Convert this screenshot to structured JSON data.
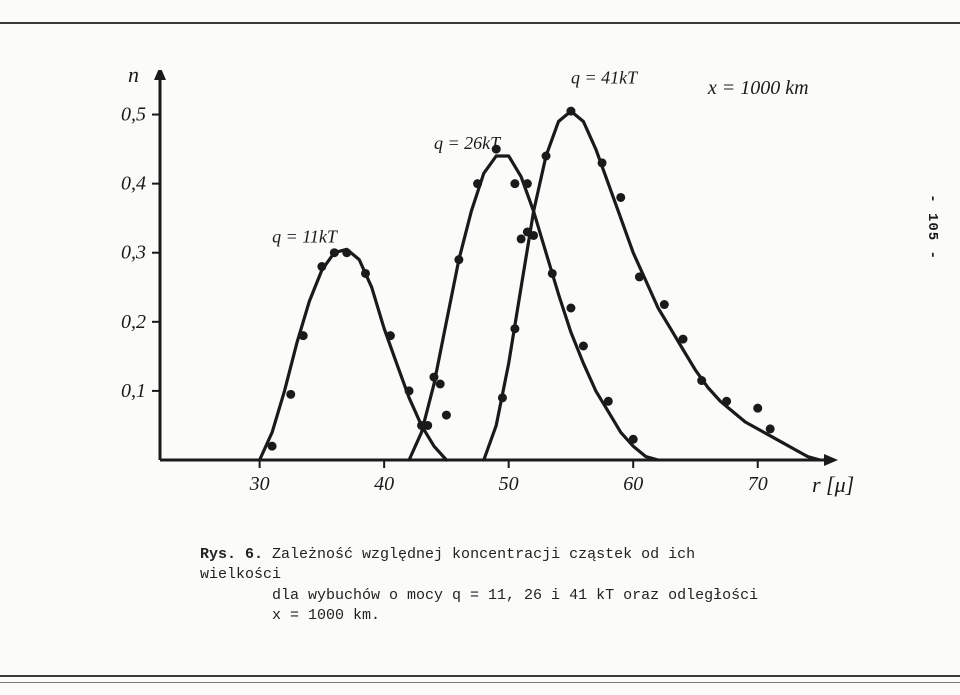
{
  "chart": {
    "type": "line",
    "title": null,
    "y_axis_label": "n",
    "x_axis_label": "r [μ]",
    "annotation_top_right": "x = 1000 km",
    "xlim": [
      22,
      75
    ],
    "ylim": [
      0,
      0.55
    ],
    "x_ticks": [
      30,
      40,
      50,
      60,
      70
    ],
    "y_ticks": [
      0.1,
      0.2,
      0.3,
      0.4,
      0.5
    ],
    "y_tick_labels": [
      "0,1",
      "0,2",
      "0,3",
      "0,4",
      "0,5"
    ],
    "axis_color": "#1a1a1a",
    "axis_width": 3,
    "background_color": "#fbfbf9",
    "tick_fontsize": 20,
    "label_fontsize": 22,
    "ann_fontsize": 20,
    "series": [
      {
        "label": "q = 11kT",
        "label_pos": [
          31,
          0.315
        ],
        "color": "#1a1a1a",
        "line_width": 3.2,
        "marker_size": 4.5,
        "curve": [
          [
            30,
            0.0
          ],
          [
            31,
            0.04
          ],
          [
            32,
            0.1
          ],
          [
            33,
            0.17
          ],
          [
            34,
            0.23
          ],
          [
            35,
            0.275
          ],
          [
            36,
            0.3
          ],
          [
            37,
            0.305
          ],
          [
            38,
            0.29
          ],
          [
            39,
            0.25
          ],
          [
            40,
            0.19
          ],
          [
            41,
            0.14
          ],
          [
            42,
            0.09
          ],
          [
            43,
            0.05
          ],
          [
            44,
            0.02
          ],
          [
            45,
            0.0
          ]
        ],
        "points": [
          [
            31,
            0.02
          ],
          [
            32.5,
            0.095
          ],
          [
            33.5,
            0.18
          ],
          [
            35,
            0.28
          ],
          [
            36,
            0.3
          ],
          [
            37,
            0.3
          ],
          [
            38.5,
            0.27
          ],
          [
            40.5,
            0.18
          ],
          [
            42,
            0.1
          ],
          [
            43.5,
            0.05
          ],
          [
            45,
            0.065
          ]
        ]
      },
      {
        "label": "q = 26kT",
        "label_pos": [
          44,
          0.45
        ],
        "color": "#1a1a1a",
        "line_width": 3.2,
        "marker_size": 4.5,
        "curve": [
          [
            42,
            0.0
          ],
          [
            43,
            0.04
          ],
          [
            44,
            0.11
          ],
          [
            45,
            0.2
          ],
          [
            46,
            0.29
          ],
          [
            47,
            0.36
          ],
          [
            48,
            0.415
          ],
          [
            49,
            0.44
          ],
          [
            50,
            0.44
          ],
          [
            51,
            0.41
          ],
          [
            52,
            0.36
          ],
          [
            53,
            0.3
          ],
          [
            54,
            0.24
          ],
          [
            55,
            0.185
          ],
          [
            56,
            0.14
          ],
          [
            57,
            0.1
          ],
          [
            58,
            0.07
          ],
          [
            59,
            0.04
          ],
          [
            60,
            0.02
          ],
          [
            61,
            0.005
          ],
          [
            62,
            0.0
          ]
        ],
        "points": [
          [
            43,
            0.05
          ],
          [
            44,
            0.12
          ],
          [
            44.5,
            0.11
          ],
          [
            46,
            0.29
          ],
          [
            47.5,
            0.4
          ],
          [
            49,
            0.45
          ],
          [
            50.5,
            0.4
          ],
          [
            51.5,
            0.4
          ],
          [
            52,
            0.325
          ],
          [
            53.5,
            0.27
          ],
          [
            55,
            0.22
          ],
          [
            56,
            0.165
          ],
          [
            58,
            0.085
          ],
          [
            60,
            0.03
          ]
        ]
      },
      {
        "label": "q = 41kT",
        "label_pos": [
          55,
          0.545
        ],
        "color": "#1a1a1a",
        "line_width": 3.2,
        "marker_size": 4.5,
        "curve": [
          [
            48,
            0.0
          ],
          [
            49,
            0.05
          ],
          [
            50,
            0.14
          ],
          [
            51,
            0.25
          ],
          [
            52,
            0.36
          ],
          [
            53,
            0.44
          ],
          [
            54,
            0.49
          ],
          [
            55,
            0.505
          ],
          [
            56,
            0.49
          ],
          [
            57,
            0.45
          ],
          [
            58,
            0.4
          ],
          [
            59,
            0.35
          ],
          [
            60,
            0.3
          ],
          [
            61,
            0.26
          ],
          [
            62,
            0.22
          ],
          [
            63,
            0.19
          ],
          [
            64,
            0.16
          ],
          [
            65,
            0.13
          ],
          [
            66,
            0.105
          ],
          [
            67,
            0.085
          ],
          [
            68,
            0.07
          ],
          [
            69,
            0.055
          ],
          [
            70,
            0.045
          ],
          [
            71,
            0.035
          ],
          [
            72,
            0.025
          ],
          [
            73,
            0.015
          ],
          [
            74,
            0.005
          ],
          [
            75,
            0.0
          ]
        ],
        "points": [
          [
            49.5,
            0.09
          ],
          [
            50.5,
            0.19
          ],
          [
            51,
            0.32
          ],
          [
            51.5,
            0.33
          ],
          [
            53,
            0.44
          ],
          [
            55,
            0.505
          ],
          [
            57.5,
            0.43
          ],
          [
            59,
            0.38
          ],
          [
            60.5,
            0.265
          ],
          [
            62.5,
            0.225
          ],
          [
            64,
            0.175
          ],
          [
            65.5,
            0.115
          ],
          [
            67.5,
            0.085
          ],
          [
            70,
            0.075
          ],
          [
            71,
            0.045
          ]
        ]
      }
    ]
  },
  "side_page_num": "- 105 -",
  "caption": {
    "fig_label": "Rys. 6.",
    "line1": "Zależność względnej koncentracji cząstek od ich wielkości",
    "line2": "dla wybuchów o mocy q = 11, 26 i 41 kT oraz odległości",
    "line3": "x = 1000 km."
  }
}
